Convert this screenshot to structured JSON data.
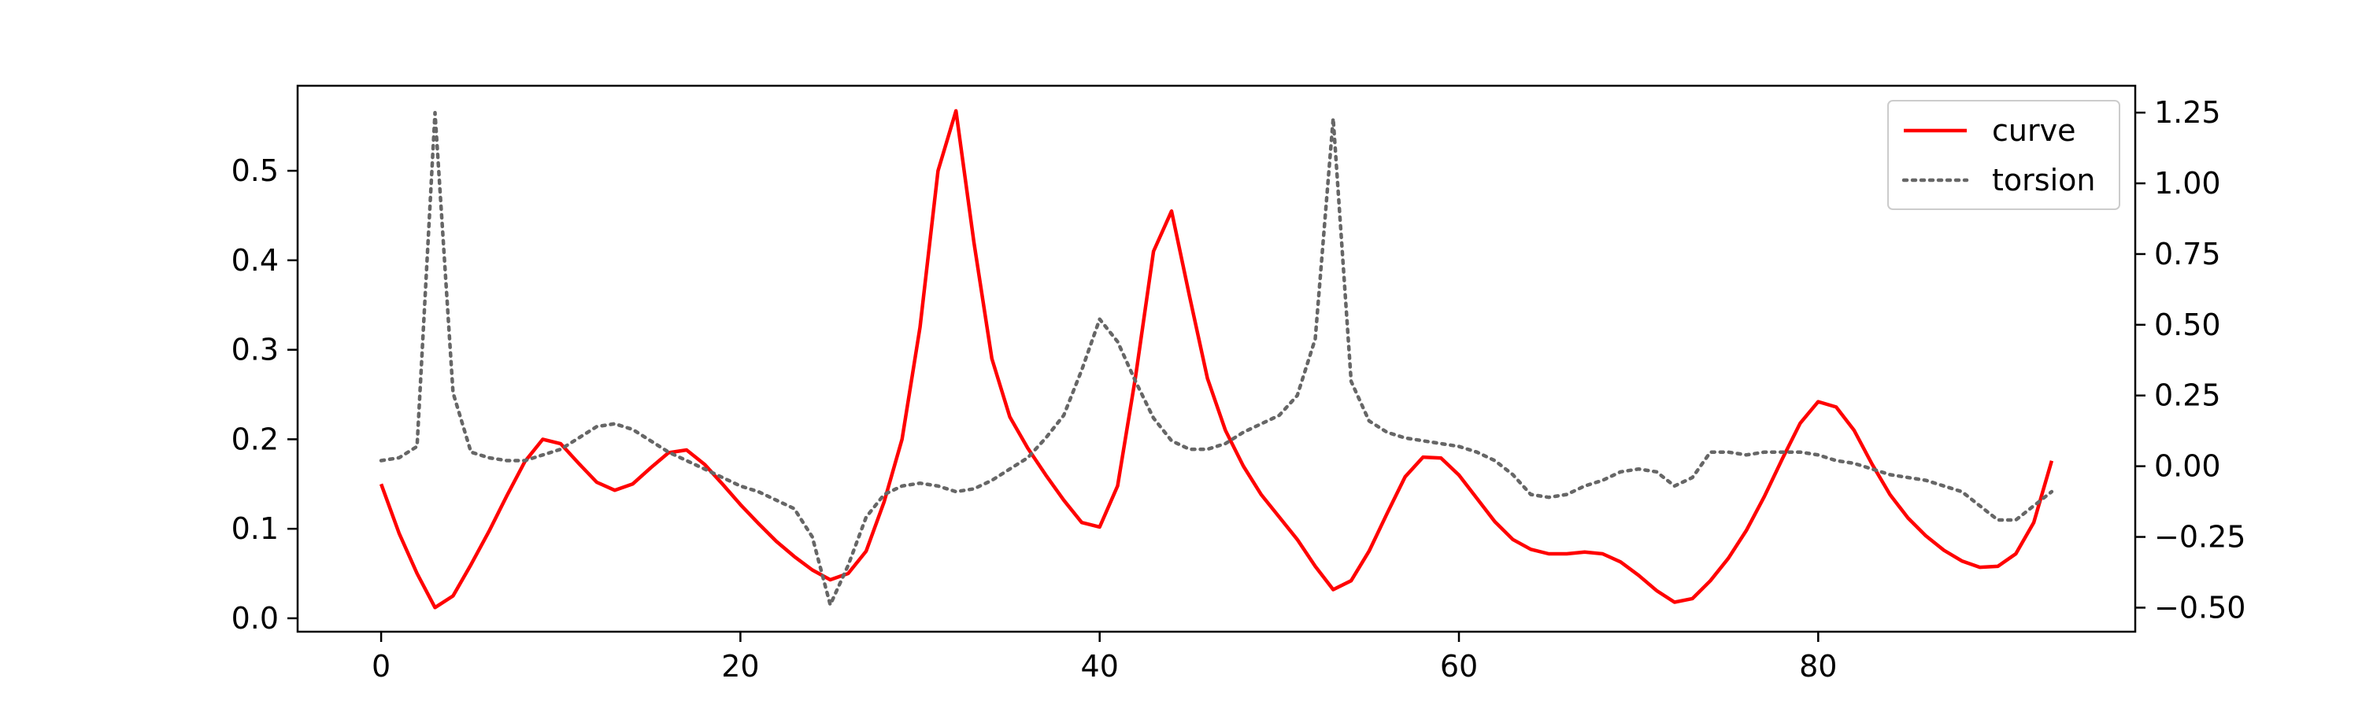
{
  "chart_data": {
    "type": "line",
    "x": [
      0,
      1,
      2,
      3,
      4,
      5,
      6,
      7,
      8,
      9,
      10,
      11,
      12,
      13,
      14,
      15,
      16,
      17,
      18,
      19,
      20,
      21,
      22,
      23,
      24,
      25,
      26,
      27,
      28,
      29,
      30,
      31,
      32,
      33,
      34,
      35,
      36,
      37,
      38,
      39,
      40,
      41,
      42,
      43,
      44,
      45,
      46,
      47,
      48,
      49,
      50,
      51,
      52,
      53,
      54,
      55,
      56,
      57,
      58,
      59,
      60,
      61,
      62,
      63,
      64,
      65,
      66,
      67,
      68,
      69,
      70,
      71,
      72,
      73,
      74,
      75,
      76,
      77,
      78,
      79,
      80,
      81,
      82,
      83,
      84,
      85,
      86,
      87,
      88,
      89,
      90,
      91,
      92,
      93
    ],
    "series": [
      {
        "name": "curve",
        "axis": "left",
        "color": "#ff0000",
        "style": "solid",
        "values": [
          0.15,
          0.095,
          0.05,
          0.012,
          0.025,
          0.06,
          0.097,
          0.137,
          0.175,
          0.2,
          0.195,
          0.173,
          0.152,
          0.143,
          0.15,
          0.168,
          0.185,
          0.188,
          0.172,
          0.15,
          0.127,
          0.106,
          0.086,
          0.069,
          0.054,
          0.043,
          0.05,
          0.075,
          0.13,
          0.2,
          0.325,
          0.5,
          0.567,
          0.42,
          0.29,
          0.225,
          0.19,
          0.16,
          0.132,
          0.107,
          0.102,
          0.148,
          0.27,
          0.41,
          0.455,
          0.36,
          0.268,
          0.21,
          0.17,
          0.138,
          0.113,
          0.088,
          0.058,
          0.032,
          0.042,
          0.075,
          0.117,
          0.158,
          0.18,
          0.179,
          0.16,
          0.134,
          0.108,
          0.088,
          0.077,
          0.072,
          0.072,
          0.074,
          0.072,
          0.063,
          0.048,
          0.031,
          0.018,
          0.022,
          0.042,
          0.067,
          0.098,
          0.136,
          0.178,
          0.218,
          0.242,
          0.236,
          0.21,
          0.172,
          0.138,
          0.112,
          0.092,
          0.076,
          0.064,
          0.057,
          0.058,
          0.072,
          0.107,
          0.176
        ]
      },
      {
        "name": "torsion",
        "axis": "right",
        "color": "#666666",
        "style": "dotted",
        "values": [
          0.02,
          0.03,
          0.07,
          1.25,
          0.26,
          0.05,
          0.03,
          0.02,
          0.02,
          0.04,
          0.06,
          0.1,
          0.14,
          0.15,
          0.13,
          0.09,
          0.05,
          0.02,
          -0.01,
          -0.04,
          -0.07,
          -0.09,
          -0.12,
          -0.15,
          -0.25,
          -0.49,
          -0.35,
          -0.18,
          -0.1,
          -0.07,
          -0.06,
          -0.07,
          -0.09,
          -0.08,
          -0.05,
          -0.01,
          0.03,
          0.1,
          0.18,
          0.34,
          0.52,
          0.44,
          0.3,
          0.17,
          0.09,
          0.06,
          0.06,
          0.08,
          0.12,
          0.15,
          0.18,
          0.25,
          0.45,
          1.23,
          0.3,
          0.16,
          0.12,
          0.1,
          0.09,
          0.08,
          0.07,
          0.05,
          0.02,
          -0.03,
          -0.1,
          -0.11,
          -0.1,
          -0.07,
          -0.05,
          -0.02,
          -0.01,
          -0.02,
          -0.07,
          -0.04,
          0.05,
          0.05,
          0.04,
          0.05,
          0.05,
          0.05,
          0.04,
          0.02,
          0.01,
          -0.01,
          -0.03,
          -0.04,
          -0.05,
          -0.07,
          -0.09,
          -0.14,
          -0.19,
          -0.19,
          -0.14,
          -0.09
        ]
      }
    ],
    "xlim": [
      -4.65,
      97.65
    ],
    "ylim_left": [
      -0.015,
      0.595
    ],
    "ylim_right": [
      -0.585,
      1.345
    ],
    "x_ticks": [
      0,
      20,
      40,
      60,
      80
    ],
    "x_tick_labels": [
      "0",
      "20",
      "40",
      "60",
      "80"
    ],
    "y_left_ticks": [
      0.0,
      0.1,
      0.2,
      0.3,
      0.4,
      0.5
    ],
    "y_left_tick_labels": [
      "0.0",
      "0.1",
      "0.2",
      "0.3",
      "0.4",
      "0.5"
    ],
    "y_right_ticks": [
      -0.5,
      -0.25,
      0.0,
      0.25,
      0.5,
      0.75,
      1.0,
      1.25
    ],
    "y_right_tick_labels": [
      "−0.50",
      "−0.25",
      "0.00",
      "0.25",
      "0.50",
      "0.75",
      "1.00",
      "1.25"
    ],
    "grid": false,
    "legend": {
      "position": "upper right",
      "entries": [
        "curve",
        "torsion"
      ]
    },
    "title": "",
    "xlabel": "",
    "ylabel": ""
  }
}
